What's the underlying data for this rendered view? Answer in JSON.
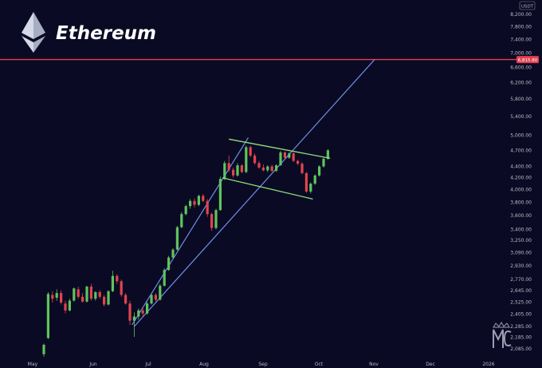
{
  "chart_data": {
    "type": "candlestick",
    "title": "Ethereum",
    "currency": "USDT",
    "ylim": [
      2020,
      8450
    ],
    "scale": "log",
    "grid": false,
    "y_ticks": [
      2085,
      2185,
      2285,
      2405,
      2525,
      2645,
      2770,
      2930,
      3090,
      3250,
      3400,
      3600,
      3800,
      4000,
      4200,
      4400,
      4700,
      5000,
      5400,
      5800,
      6200,
      6600,
      7000,
      7400,
      7800,
      8200
    ],
    "y_tick_labels": [
      "2,085.00",
      "2,185.00",
      "2,285.00",
      "2,405.00",
      "2,525.00",
      "2,645.00",
      "2,770.00",
      "2,930.00",
      "3,090.00",
      "3,250.00",
      "3,400.00",
      "3,600.00",
      "3,800.00",
      "4,000.00",
      "4,200.00",
      "4,400.00",
      "4,700.00",
      "5,000.00",
      "5,400.00",
      "5,800.00",
      "6,200.00",
      "6,600.00",
      "7,000.00",
      "7,400.00",
      "7,800.00",
      "8,200.00"
    ],
    "x_ticks": [
      "May",
      "Jun",
      "Jul",
      "Aug",
      "Sep",
      "Oct",
      "Nov",
      "Dec",
      "2026"
    ],
    "target_label": "6,815.80",
    "target_value": 6815.8,
    "colors": {
      "up": "#5ec45e",
      "down": "#e0454c",
      "target": "#e04050",
      "channel": "#8fe07a",
      "trend": "#6f8ee8"
    },
    "candles": [
      [
        2040,
        2130,
        2020,
        2120
      ],
      [
        2180,
        2630,
        2170,
        2610
      ],
      [
        2600,
        2640,
        2520,
        2560
      ],
      [
        2570,
        2660,
        2540,
        2620
      ],
      [
        2620,
        2650,
        2500,
        2520
      ],
      [
        2510,
        2540,
        2410,
        2440
      ],
      [
        2440,
        2560,
        2430,
        2540
      ],
      [
        2540,
        2680,
        2530,
        2670
      ],
      [
        2660,
        2690,
        2560,
        2580
      ],
      [
        2580,
        2620,
        2520,
        2530
      ],
      [
        2530,
        2700,
        2520,
        2690
      ],
      [
        2690,
        2720,
        2540,
        2560
      ],
      [
        2560,
        2640,
        2540,
        2630
      ],
      [
        2630,
        2650,
        2560,
        2580
      ],
      [
        2580,
        2600,
        2480,
        2500
      ],
      [
        2500,
        2650,
        2490,
        2640
      ],
      [
        2640,
        2870,
        2630,
        2810
      ],
      [
        2810,
        2830,
        2720,
        2750
      ],
      [
        2750,
        2770,
        2580,
        2600
      ],
      [
        2600,
        2620,
        2500,
        2510
      ],
      [
        2510,
        2540,
        2300,
        2340
      ],
      [
        2340,
        2420,
        2190,
        2380
      ],
      [
        2380,
        2460,
        2350,
        2440
      ],
      [
        2440,
        2480,
        2380,
        2410
      ],
      [
        2410,
        2530,
        2400,
        2510
      ],
      [
        2510,
        2620,
        2500,
        2600
      ],
      [
        2600,
        2620,
        2530,
        2550
      ],
      [
        2550,
        2720,
        2540,
        2700
      ],
      [
        2700,
        2900,
        2690,
        2880
      ],
      [
        2880,
        3050,
        2870,
        3030
      ],
      [
        3030,
        3150,
        3020,
        3130
      ],
      [
        3130,
        3450,
        3120,
        3430
      ],
      [
        3430,
        3650,
        3420,
        3620
      ],
      [
        3620,
        3760,
        3600,
        3740
      ],
      [
        3740,
        3850,
        3700,
        3820
      ],
      [
        3820,
        3860,
        3720,
        3760
      ],
      [
        3760,
        3920,
        3740,
        3900
      ],
      [
        3900,
        3930,
        3800,
        3820
      ],
      [
        3820,
        3850,
        3580,
        3620
      ],
      [
        3620,
        3640,
        3380,
        3420
      ],
      [
        3420,
        3700,
        3400,
        3680
      ],
      [
        3680,
        4220,
        3670,
        4180
      ],
      [
        4180,
        4500,
        4160,
        4460
      ],
      [
        4460,
        4600,
        4300,
        4340
      ],
      [
        4340,
        4380,
        4200,
        4240
      ],
      [
        4240,
        4460,
        4220,
        4420
      ],
      [
        4420,
        4440,
        4280,
        4300
      ],
      [
        4300,
        4790,
        4280,
        4760
      ],
      [
        4760,
        4790,
        4570,
        4600
      ],
      [
        4600,
        4640,
        4430,
        4460
      ],
      [
        4460,
        4500,
        4360,
        4380
      ],
      [
        4380,
        4440,
        4310,
        4330
      ],
      [
        4330,
        4420,
        4300,
        4400
      ],
      [
        4400,
        4430,
        4300,
        4320
      ],
      [
        4320,
        4440,
        4300,
        4420
      ],
      [
        4420,
        4690,
        4410,
        4660
      ],
      [
        4660,
        4680,
        4530,
        4560
      ],
      [
        4560,
        4660,
        4540,
        4640
      ],
      [
        4640,
        4660,
        4480,
        4500
      ],
      [
        4500,
        4520,
        4420,
        4450
      ],
      [
        4450,
        4480,
        4260,
        4280
      ],
      [
        4280,
        4300,
        3950,
        3970
      ],
      [
        3970,
        4120,
        3940,
        4100
      ],
      [
        4100,
        4260,
        4080,
        4240
      ],
      [
        4240,
        4420,
        4220,
        4400
      ],
      [
        4400,
        4560,
        4380,
        4540
      ],
      [
        4540,
        4720,
        4520,
        4700
      ]
    ]
  }
}
